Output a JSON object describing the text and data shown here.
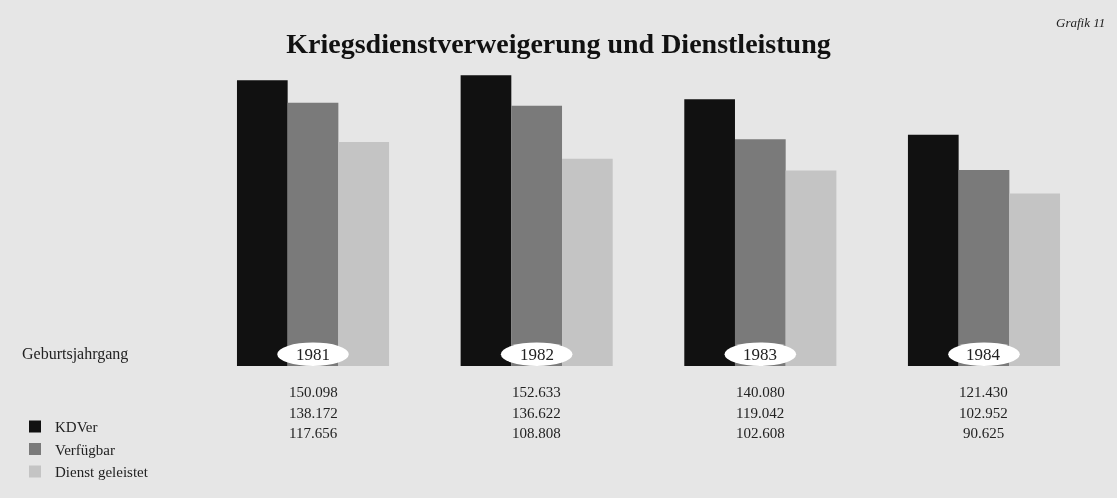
{
  "chart_data": {
    "type": "bar",
    "title": "Kriegsdienstverweigerung und Dienstleistung",
    "annotations": [
      "Grafik 11"
    ],
    "xlabel": "Geburtsjahrgang",
    "categories": [
      "1981",
      "1982",
      "1983",
      "1984"
    ],
    "series": [
      {
        "name": "KDVer",
        "color": "#111111",
        "values": [
          150098,
          152633,
          140080,
          121430
        ],
        "value_labels": [
          "150.098",
          "152.633",
          "140.080",
          "121.430"
        ]
      },
      {
        "name": "Verfügbar",
        "color": "#7a7a7a",
        "values": [
          138172,
          136622,
          119042,
          102952
        ],
        "value_labels": [
          "138.172",
          "136.622",
          "119.042",
          "102.952"
        ]
      },
      {
        "name": "Dienst geleistet",
        "color": "#c4c4c4",
        "values": [
          117656,
          108808,
          102608,
          90625
        ],
        "value_labels": [
          "117.656",
          "108.808",
          "102.608",
          "90.625"
        ]
      }
    ],
    "grid": false,
    "legend": "bottom left"
  }
}
